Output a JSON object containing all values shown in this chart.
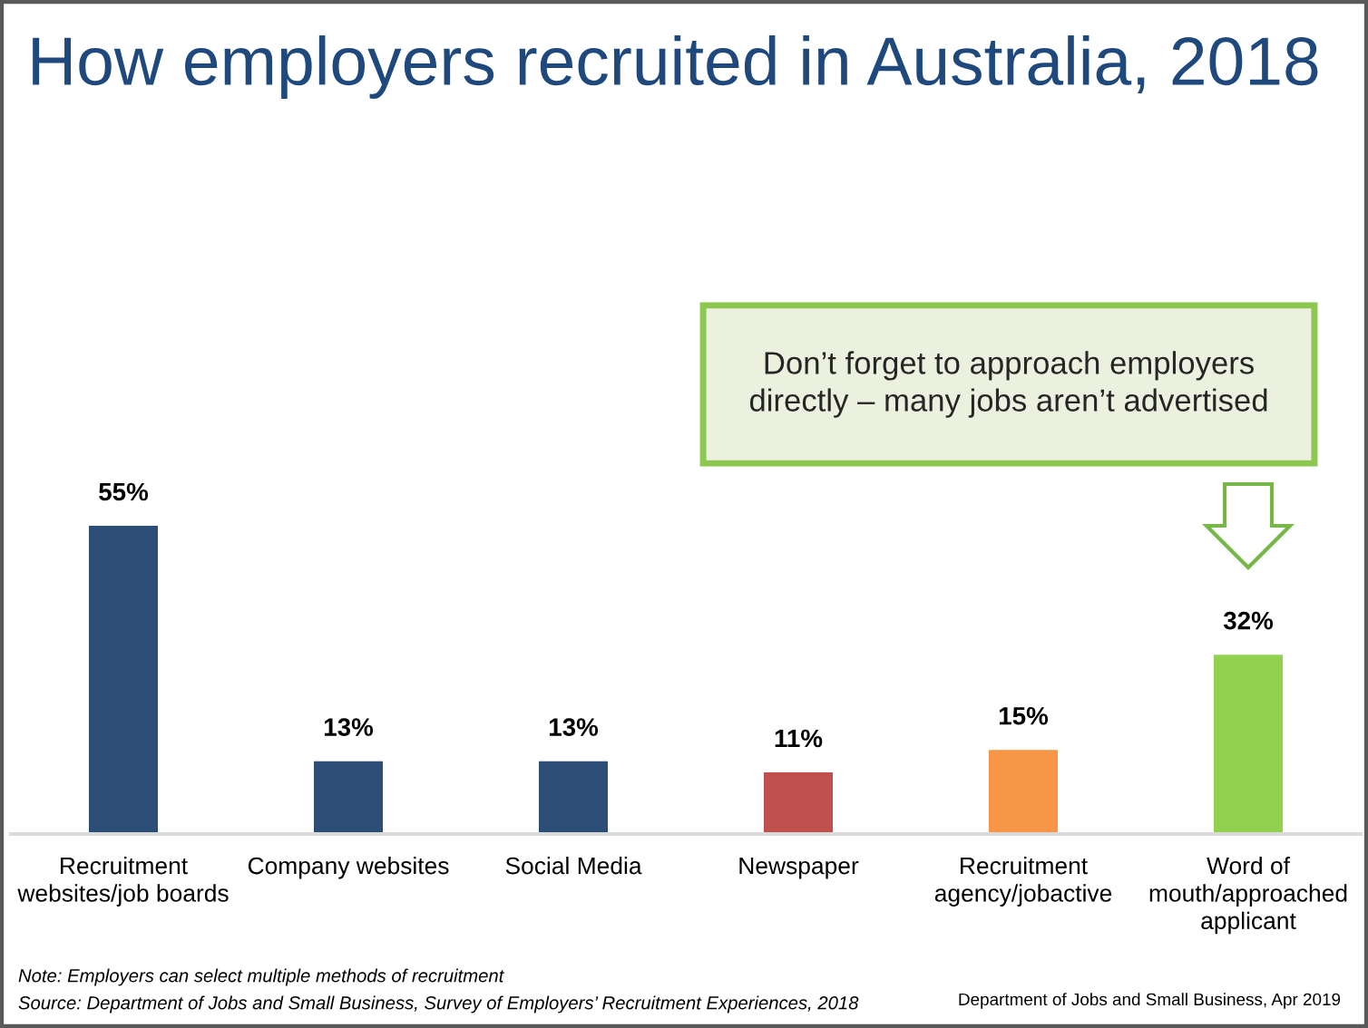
{
  "chart_data": {
    "type": "bar",
    "title": "How employers recruited in Australia, 2018",
    "categories": [
      "Recruitment websites/job boards",
      "Company websites",
      "Social Media",
      "Newspaper",
      "Recruitment agency/jobactive",
      "Word of mouth/approached applicant"
    ],
    "values": [
      55,
      13,
      13,
      11,
      15,
      32
    ],
    "colors": [
      "#2c4d75",
      "#2c4d75",
      "#2c4d75",
      "#c0504d",
      "#f79646",
      "#92d050"
    ],
    "value_labels": [
      "55%",
      "13%",
      "13%",
      "11%",
      "15%",
      "32%"
    ],
    "annotations": [
      "Don’t forget to approach employers directly – many jobs aren’t advertised",
      "Note: Employers can select multiple methods of recruitment",
      "Source: Department of Jobs and Small Business, Survey of Employers’ Recruitment Experiences, 2018",
      "Department of Jobs and Small Business, Apr 2019"
    ]
  }
}
